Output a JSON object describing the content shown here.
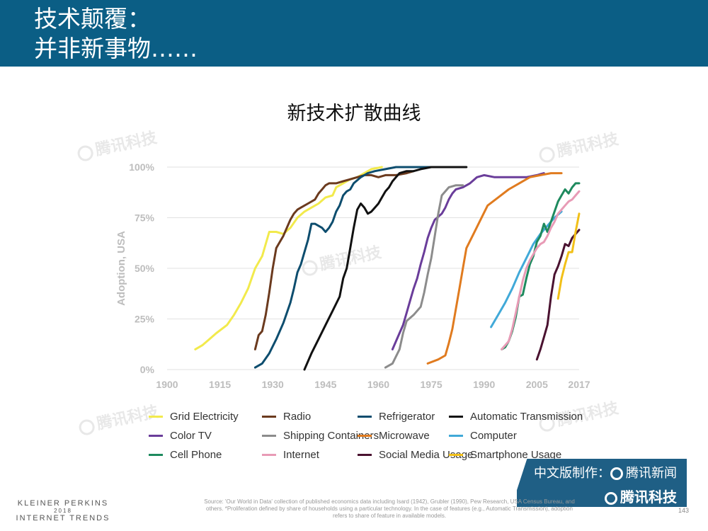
{
  "header": {
    "title_line1": "技术颠覆：",
    "title_line2": "并非新事物……"
  },
  "chart_data": {
    "type": "line",
    "title": "新技术扩散曲线",
    "ylabel": "Adoption, USA",
    "xlabel": "",
    "xlim": [
      1900,
      2017
    ],
    "ylim": [
      0,
      100
    ],
    "x_ticks": [
      1900,
      1915,
      1930,
      1945,
      1960,
      1975,
      1990,
      2005,
      2017
    ],
    "y_ticks": [
      0,
      25,
      50,
      75,
      100
    ],
    "y_tick_labels": [
      "0%",
      "25%",
      "50%",
      "75%",
      "100%"
    ],
    "grid": "horizontal",
    "legend_position": "bottom",
    "series": [
      {
        "name": "Grid Electricity",
        "color": "#f2ea4c",
        "points": [
          [
            1908,
            10
          ],
          [
            1910,
            12
          ],
          [
            1912,
            15
          ],
          [
            1914,
            18
          ],
          [
            1917,
            22
          ],
          [
            1919,
            27
          ],
          [
            1921,
            33
          ],
          [
            1923,
            40
          ],
          [
            1924,
            45
          ],
          [
            1925,
            50
          ],
          [
            1927,
            56
          ],
          [
            1929,
            68
          ],
          [
            1931,
            68
          ],
          [
            1933,
            67
          ],
          [
            1935,
            70
          ],
          [
            1937,
            75
          ],
          [
            1939,
            78
          ],
          [
            1941,
            80
          ],
          [
            1943,
            82
          ],
          [
            1945,
            85
          ],
          [
            1947,
            86
          ],
          [
            1948,
            90
          ],
          [
            1950,
            92
          ],
          [
            1952,
            94
          ],
          [
            1954,
            95
          ],
          [
            1956,
            97
          ],
          [
            1958,
            99
          ],
          [
            1961,
            100
          ]
        ]
      },
      {
        "name": "Radio",
        "color": "#6b3a1e",
        "points": [
          [
            1925,
            10
          ],
          [
            1926,
            17
          ],
          [
            1927,
            19
          ],
          [
            1928,
            27
          ],
          [
            1929,
            38
          ],
          [
            1930,
            50
          ],
          [
            1931,
            60
          ],
          [
            1932,
            63
          ],
          [
            1933,
            66
          ],
          [
            1934,
            70
          ],
          [
            1935,
            74
          ],
          [
            1936,
            77
          ],
          [
            1937,
            79
          ],
          [
            1938,
            80
          ],
          [
            1940,
            82
          ],
          [
            1942,
            84
          ],
          [
            1943,
            87
          ],
          [
            1944,
            89
          ],
          [
            1945,
            91
          ],
          [
            1946,
            92
          ],
          [
            1948,
            92
          ],
          [
            1950,
            93
          ],
          [
            1952,
            94
          ],
          [
            1954,
            95
          ],
          [
            1956,
            96
          ],
          [
            1958,
            96
          ],
          [
            1960,
            95
          ],
          [
            1962,
            96
          ],
          [
            1965,
            96
          ],
          [
            1968,
            97
          ],
          [
            1970,
            98
          ]
        ]
      },
      {
        "name": "Refrigerator",
        "color": "#0d4d6e",
        "points": [
          [
            1925,
            1
          ],
          [
            1927,
            3
          ],
          [
            1929,
            8
          ],
          [
            1931,
            15
          ],
          [
            1933,
            23
          ],
          [
            1935,
            33
          ],
          [
            1936,
            40
          ],
          [
            1937,
            48
          ],
          [
            1938,
            52
          ],
          [
            1939,
            58
          ],
          [
            1940,
            64
          ],
          [
            1941,
            72
          ],
          [
            1942,
            72
          ],
          [
            1943,
            71
          ],
          [
            1944,
            70
          ],
          [
            1945,
            68
          ],
          [
            1946,
            70
          ],
          [
            1947,
            73
          ],
          [
            1948,
            78
          ],
          [
            1949,
            81
          ],
          [
            1950,
            86
          ],
          [
            1951,
            88
          ],
          [
            1952,
            89
          ],
          [
            1953,
            92
          ],
          [
            1955,
            95
          ],
          [
            1957,
            97
          ],
          [
            1959,
            98
          ],
          [
            1962,
            99
          ],
          [
            1965,
            100
          ],
          [
            1970,
            100
          ],
          [
            1980,
            100
          ]
        ]
      },
      {
        "name": "Automatic Transmission",
        "color": "#111111",
        "points": [
          [
            1939,
            0
          ],
          [
            1941,
            8
          ],
          [
            1943,
            15
          ],
          [
            1945,
            22
          ],
          [
            1947,
            29
          ],
          [
            1949,
            36
          ],
          [
            1950,
            45
          ],
          [
            1951,
            50
          ],
          [
            1952,
            60
          ],
          [
            1953,
            70
          ],
          [
            1954,
            79
          ],
          [
            1955,
            82
          ],
          [
            1956,
            80
          ],
          [
            1957,
            77
          ],
          [
            1958,
            78
          ],
          [
            1959,
            80
          ],
          [
            1960,
            82
          ],
          [
            1961,
            85
          ],
          [
            1962,
            88
          ],
          [
            1963,
            90
          ],
          [
            1964,
            93
          ],
          [
            1965,
            95
          ],
          [
            1966,
            97
          ],
          [
            1968,
            98
          ],
          [
            1970,
            98
          ],
          [
            1972,
            99
          ],
          [
            1975,
            100
          ],
          [
            1985,
            100
          ]
        ]
      },
      {
        "name": "Color TV",
        "color": "#6a3d9a",
        "points": [
          [
            1964,
            10
          ],
          [
            1966,
            18
          ],
          [
            1967,
            22
          ],
          [
            1968,
            28
          ],
          [
            1969,
            34
          ],
          [
            1970,
            40
          ],
          [
            1971,
            45
          ],
          [
            1972,
            52
          ],
          [
            1973,
            58
          ],
          [
            1974,
            65
          ],
          [
            1975,
            70
          ],
          [
            1976,
            74
          ],
          [
            1978,
            77
          ],
          [
            1979,
            80
          ],
          [
            1980,
            84
          ],
          [
            1981,
            87
          ],
          [
            1982,
            89
          ],
          [
            1984,
            90
          ],
          [
            1986,
            92
          ],
          [
            1988,
            95
          ],
          [
            1990,
            96
          ],
          [
            1993,
            95
          ],
          [
            1996,
            95
          ],
          [
            1999,
            95
          ],
          [
            2002,
            95
          ],
          [
            2005,
            96
          ],
          [
            2007,
            97
          ]
        ]
      },
      {
        "name": "Shipping Containers",
        "color": "#8c8c8c",
        "points": [
          [
            1962,
            1
          ],
          [
            1964,
            3
          ],
          [
            1966,
            10
          ],
          [
            1967,
            18
          ],
          [
            1968,
            24
          ],
          [
            1970,
            27
          ],
          [
            1972,
            31
          ],
          [
            1973,
            38
          ],
          [
            1974,
            47
          ],
          [
            1975,
            55
          ],
          [
            1976,
            66
          ],
          [
            1977,
            77
          ],
          [
            1978,
            86
          ],
          [
            1980,
            90
          ],
          [
            1982,
            91
          ],
          [
            1984,
            91
          ]
        ]
      },
      {
        "name": "Microwave",
        "color": "#e07b1f",
        "points": [
          [
            1974,
            3
          ],
          [
            1977,
            5
          ],
          [
            1979,
            7
          ],
          [
            1980,
            13
          ],
          [
            1981,
            20
          ],
          [
            1982,
            30
          ],
          [
            1983,
            40
          ],
          [
            1984,
            50
          ],
          [
            1985,
            60
          ],
          [
            1987,
            67
          ],
          [
            1989,
            74
          ],
          [
            1991,
            81
          ],
          [
            1994,
            85
          ],
          [
            1997,
            89
          ],
          [
            2000,
            92
          ],
          [
            2003,
            95
          ],
          [
            2006,
            96
          ],
          [
            2009,
            97
          ],
          [
            2012,
            97
          ]
        ]
      },
      {
        "name": "Computer",
        "color": "#41a9d8",
        "points": [
          [
            1992,
            21
          ],
          [
            1994,
            27
          ],
          [
            1996,
            33
          ],
          [
            1998,
            40
          ],
          [
            2000,
            48
          ],
          [
            2002,
            55
          ],
          [
            2004,
            62
          ],
          [
            2006,
            67
          ],
          [
            2008,
            71
          ],
          [
            2010,
            75
          ],
          [
            2012,
            78
          ]
        ]
      },
      {
        "name": "Cell Phone",
        "color": "#1e8a5e",
        "points": [
          [
            1995,
            10
          ],
          [
            1996,
            11
          ],
          [
            1997,
            14
          ],
          [
            1998,
            19
          ],
          [
            1999,
            26
          ],
          [
            2000,
            36
          ],
          [
            2001,
            37
          ],
          [
            2002,
            45
          ],
          [
            2003,
            52
          ],
          [
            2004,
            56
          ],
          [
            2005,
            63
          ],
          [
            2006,
            66
          ],
          [
            2007,
            72
          ],
          [
            2008,
            68
          ],
          [
            2009,
            73
          ],
          [
            2010,
            78
          ],
          [
            2011,
            83
          ],
          [
            2012,
            86
          ],
          [
            2013,
            89
          ],
          [
            2014,
            87
          ],
          [
            2015,
            90
          ],
          [
            2016,
            92
          ],
          [
            2017,
            92
          ]
        ]
      },
      {
        "name": "Internet",
        "color": "#e89bb6",
        "points": [
          [
            1995,
            10
          ],
          [
            1997,
            14
          ],
          [
            1998,
            20
          ],
          [
            1999,
            28
          ],
          [
            2000,
            36
          ],
          [
            2001,
            44
          ],
          [
            2002,
            50
          ],
          [
            2003,
            54
          ],
          [
            2004,
            57
          ],
          [
            2005,
            60
          ],
          [
            2006,
            62
          ],
          [
            2007,
            63
          ],
          [
            2008,
            66
          ],
          [
            2009,
            70
          ],
          [
            2010,
            73
          ],
          [
            2011,
            77
          ],
          [
            2012,
            79
          ],
          [
            2013,
            81
          ],
          [
            2014,
            83
          ],
          [
            2015,
            84
          ],
          [
            2016,
            86
          ],
          [
            2017,
            88
          ]
        ]
      },
      {
        "name": "Social Media Usage",
        "color": "#4a1230",
        "points": [
          [
            2005,
            5
          ],
          [
            2006,
            10
          ],
          [
            2007,
            16
          ],
          [
            2008,
            22
          ],
          [
            2009,
            36
          ],
          [
            2010,
            47
          ],
          [
            2011,
            51
          ],
          [
            2012,
            56
          ],
          [
            2013,
            62
          ],
          [
            2014,
            61
          ],
          [
            2015,
            65
          ],
          [
            2016,
            67
          ],
          [
            2017,
            69
          ]
        ]
      },
      {
        "name": "Smartphone Usage",
        "color": "#f2c018",
        "points": [
          [
            2011,
            35
          ],
          [
            2012,
            45
          ],
          [
            2013,
            52
          ],
          [
            2014,
            58
          ],
          [
            2015,
            58
          ],
          [
            2016,
            68
          ],
          [
            2017,
            77
          ]
        ]
      }
    ]
  },
  "watermark_text": "腾讯科技",
  "badge": {
    "line1": "中文版制作：",
    "line1_brand": "腾讯新闻",
    "line2_brand": "腾讯科技"
  },
  "footer": {
    "logo_line1": "KLEINER PERKINS",
    "logo_line2": "2018",
    "logo_line3": "INTERNET TRENDS",
    "source": "Source: 'Our World in Data' collection of published economics data including Isard (1942), Grubler (1990), Pew Research, USA Census Bureau, and others. *Proliferation defined by share of households using a particular technology. In the case of features (e.g., Automatic Transmission), adoption refers to share of feature in available models.",
    "page_number": "143"
  }
}
